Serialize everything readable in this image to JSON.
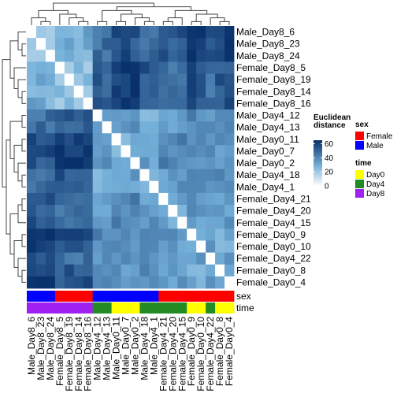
{
  "chart_data": {
    "type": "heatmap",
    "samples": [
      "Male_Day8_6",
      "Male_Day8_23",
      "Male_Day8_24",
      "Female_Day8_5",
      "Female_Day8_19",
      "Female_Day8_14",
      "Female_Day8_16",
      "Male_Day4_12",
      "Male_Day4_13",
      "Male_Day0_11",
      "Male_Day0_7",
      "Male_Day0_2",
      "Male_Day4_18",
      "Male_Day4_1",
      "Female_Day4_21",
      "Female_Day4_20",
      "Female_Day4_15",
      "Female_Day0_9",
      "Female_Day0_10",
      "Female_Day4_22",
      "Female_Day0_8",
      "Female_Day0_4"
    ],
    "sex": [
      "Male",
      "Male",
      "Male",
      "Female",
      "Female",
      "Female",
      "Female",
      "Male",
      "Male",
      "Male",
      "Male",
      "Male",
      "Male",
      "Male",
      "Female",
      "Female",
      "Female",
      "Female",
      "Female",
      "Female",
      "Female",
      "Female"
    ],
    "time": [
      "Day8",
      "Day8",
      "Day8",
      "Day8",
      "Day8",
      "Day8",
      "Day8",
      "Day4",
      "Day4",
      "Day0",
      "Day0",
      "Day0",
      "Day4",
      "Day4",
      "Day4",
      "Day4",
      "Day4",
      "Day0",
      "Day0",
      "Day4",
      "Day0",
      "Day0"
    ],
    "color_scale": {
      "title_lines": [
        "Euclidean",
        "distance"
      ],
      "ticks": [
        "60",
        "40",
        "20",
        "0"
      ],
      "tick_values": [
        60,
        40,
        20,
        0
      ],
      "min": 0,
      "max": 65,
      "low_color": "#ffffff",
      "mid_color": "#73afd8",
      "high_color": "#08306b"
    },
    "annotation_legends": [
      {
        "title": "sex",
        "items": [
          {
            "label": "Female",
            "color": "#ff0000"
          },
          {
            "label": "Male",
            "color": "#0000ff"
          }
        ]
      },
      {
        "title": "time",
        "items": [
          {
            "label": "Day0",
            "color": "#ffff00"
          },
          {
            "label": "Day4",
            "color": "#228b22"
          },
          {
            "label": "Day8",
            "color": "#a020f0"
          }
        ]
      }
    ],
    "annotation_rows": [
      "sex",
      "time"
    ]
  }
}
